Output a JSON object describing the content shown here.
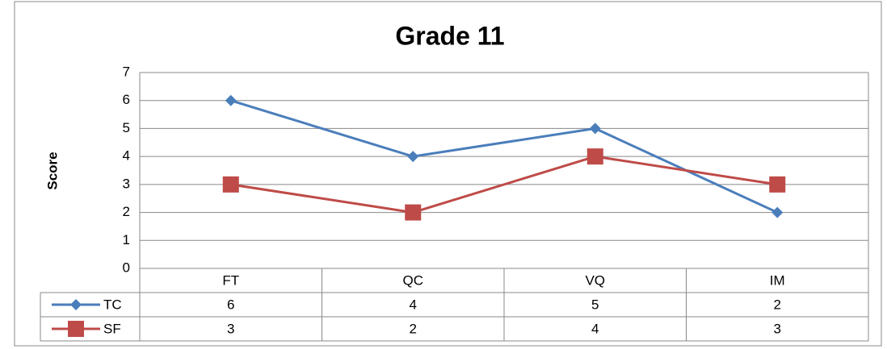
{
  "chart_data": {
    "type": "line",
    "title": "Grade 11",
    "y_label": "Score",
    "categories": [
      "FT",
      "QC",
      "VQ",
      "IM"
    ],
    "series": [
      {
        "name": "TC",
        "color": "#4a7ebb",
        "marker": "diamond",
        "values": [
          6,
          4,
          5,
          2
        ]
      },
      {
        "name": "SF",
        "color": "#be4b48",
        "marker": "square",
        "values": [
          3,
          2,
          4,
          3
        ]
      }
    ],
    "ylim": [
      0,
      7
    ],
    "yticks": [
      0,
      1,
      2,
      3,
      4,
      5,
      6,
      7
    ],
    "grid": true,
    "data_table": true
  }
}
